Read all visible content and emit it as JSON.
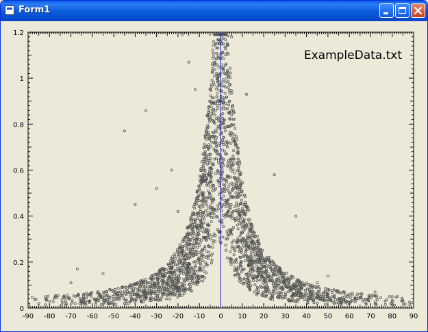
{
  "window": {
    "title": "Form1",
    "icon": "form-icon",
    "buttons": [
      "minimize",
      "maximize",
      "close"
    ]
  },
  "chart_data": {
    "type": "scatter",
    "annotation": "ExampleData.txt",
    "xlim": [
      -90,
      90
    ],
    "ylim": [
      0,
      1.2
    ],
    "x_ticks": [
      -90,
      -80,
      -70,
      -60,
      -50,
      -40,
      -30,
      -20,
      -10,
      0,
      10,
      20,
      30,
      40,
      50,
      60,
      70,
      80,
      90
    ],
    "x_tick_labels": [
      "-90",
      "-80",
      "-70",
      "-60",
      "-50",
      "-40",
      "-30",
      "-20",
      "-10",
      "0",
      "10",
      "20",
      "30",
      "40",
      "50",
      "60",
      "70",
      "80",
      "90"
    ],
    "y_ticks": [
      0,
      0.2,
      0.4,
      0.6,
      0.8,
      1,
      1.2
    ],
    "y_tick_labels": [
      "0",
      "0.2",
      "0.4",
      "0.6",
      "0.8",
      "1",
      "1.2"
    ],
    "vertical_marker_x": 0,
    "marker": "open-circle",
    "point_color": "#555555",
    "marker_line_color": "#1A1AC8",
    "background": "#ECE9D8",
    "sample_points": [
      [
        -35,
        0.86
      ],
      [
        -45,
        0.77
      ],
      [
        -18,
        1.19
      ],
      [
        -15,
        1.07
      ],
      [
        5,
        1.18
      ],
      [
        3,
        1.15
      ],
      [
        -12,
        0.95
      ],
      [
        12,
        0.93
      ],
      [
        -40,
        0.45
      ],
      [
        -30,
        0.52
      ],
      [
        25,
        0.58
      ],
      [
        35,
        0.4
      ],
      [
        45,
        0.11
      ],
      [
        -70,
        0.11
      ],
      [
        -67,
        0.17
      ],
      [
        -23,
        0.6
      ],
      [
        -20,
        0.42
      ],
      [
        10,
        0.35
      ],
      [
        -5,
        0.3
      ],
      [
        60,
        0.06
      ],
      [
        80,
        0.05
      ],
      [
        -80,
        0.03
      ],
      [
        -85,
        0.02
      ],
      [
        85,
        0.03
      ],
      [
        72,
        0.07
      ],
      [
        -55,
        0.15
      ],
      [
        50,
        0.14
      ],
      [
        20,
        0.2
      ]
    ]
  }
}
